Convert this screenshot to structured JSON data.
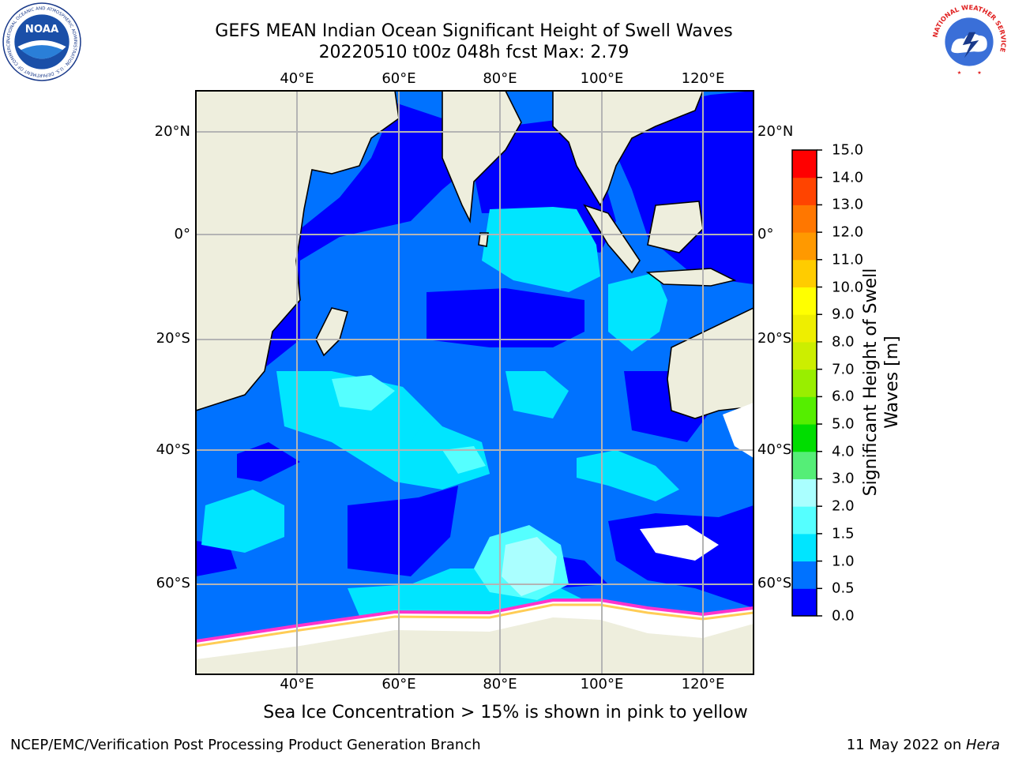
{
  "title": {
    "line1": "GEFS MEAN Indian Ocean Significant Height of Swell Waves",
    "line2": "20220510 t00z 048h fcst   Max: 2.79"
  },
  "logos": {
    "left": {
      "name": "noaa-logo",
      "text": "NOAA",
      "ring_text": "NATIONAL OCEANIC AND ATMOSPHERIC ADMINISTRATION · U.S. DEPARTMENT OF COMMERCE"
    },
    "right": {
      "name": "nws-logo",
      "ring_text": "NATIONAL WEATHER SERVICE"
    }
  },
  "map": {
    "projection": "cylindrical",
    "lon_range": [
      20,
      130
    ],
    "lat_range": [
      -72,
      28
    ],
    "lon_ticks": [
      "40°E",
      "60°E",
      "80°E",
      "100°E",
      "120°E"
    ],
    "lat_ticks": [
      "20°N",
      "0°",
      "20°S",
      "40°S",
      "60°S"
    ],
    "grid": true,
    "colors": {
      "land": "#eeeedd",
      "coast": "#000000",
      "grid": "#b4b4b4",
      "ice_edge": "#ff33cc",
      "ice_mid": "#ff99dd",
      "ice_high": "#ffcc55"
    }
  },
  "colorbar": {
    "label": "Significant Height of Swell Waves [m]",
    "ticks": [
      "0.0",
      "0.5",
      "1.0",
      "1.5",
      "2.0",
      "3.0",
      "4.0",
      "5.0",
      "6.0",
      "7.0",
      "8.0",
      "9.0",
      "10.0",
      "11.0",
      "12.0",
      "13.0",
      "14.0",
      "15.0"
    ],
    "colors": [
      "#0000ff",
      "#0072ff",
      "#00e5ff",
      "#55ffff",
      "#aaffff",
      "#55ee77",
      "#00dd00",
      "#55ee00",
      "#99ee00",
      "#ccee00",
      "#eeee00",
      "#ffff00",
      "#ffcc00",
      "#ff9900",
      "#ff7700",
      "#ff4400",
      "#ff0000"
    ]
  },
  "note": "Sea Ice Concentration > 15% is shown in pink to yellow",
  "footer": {
    "left": "NCEP/EMC/Verification Post Processing Product Generation Branch",
    "right_date": "11 May 2022 on ",
    "right_machine": "Hera"
  }
}
